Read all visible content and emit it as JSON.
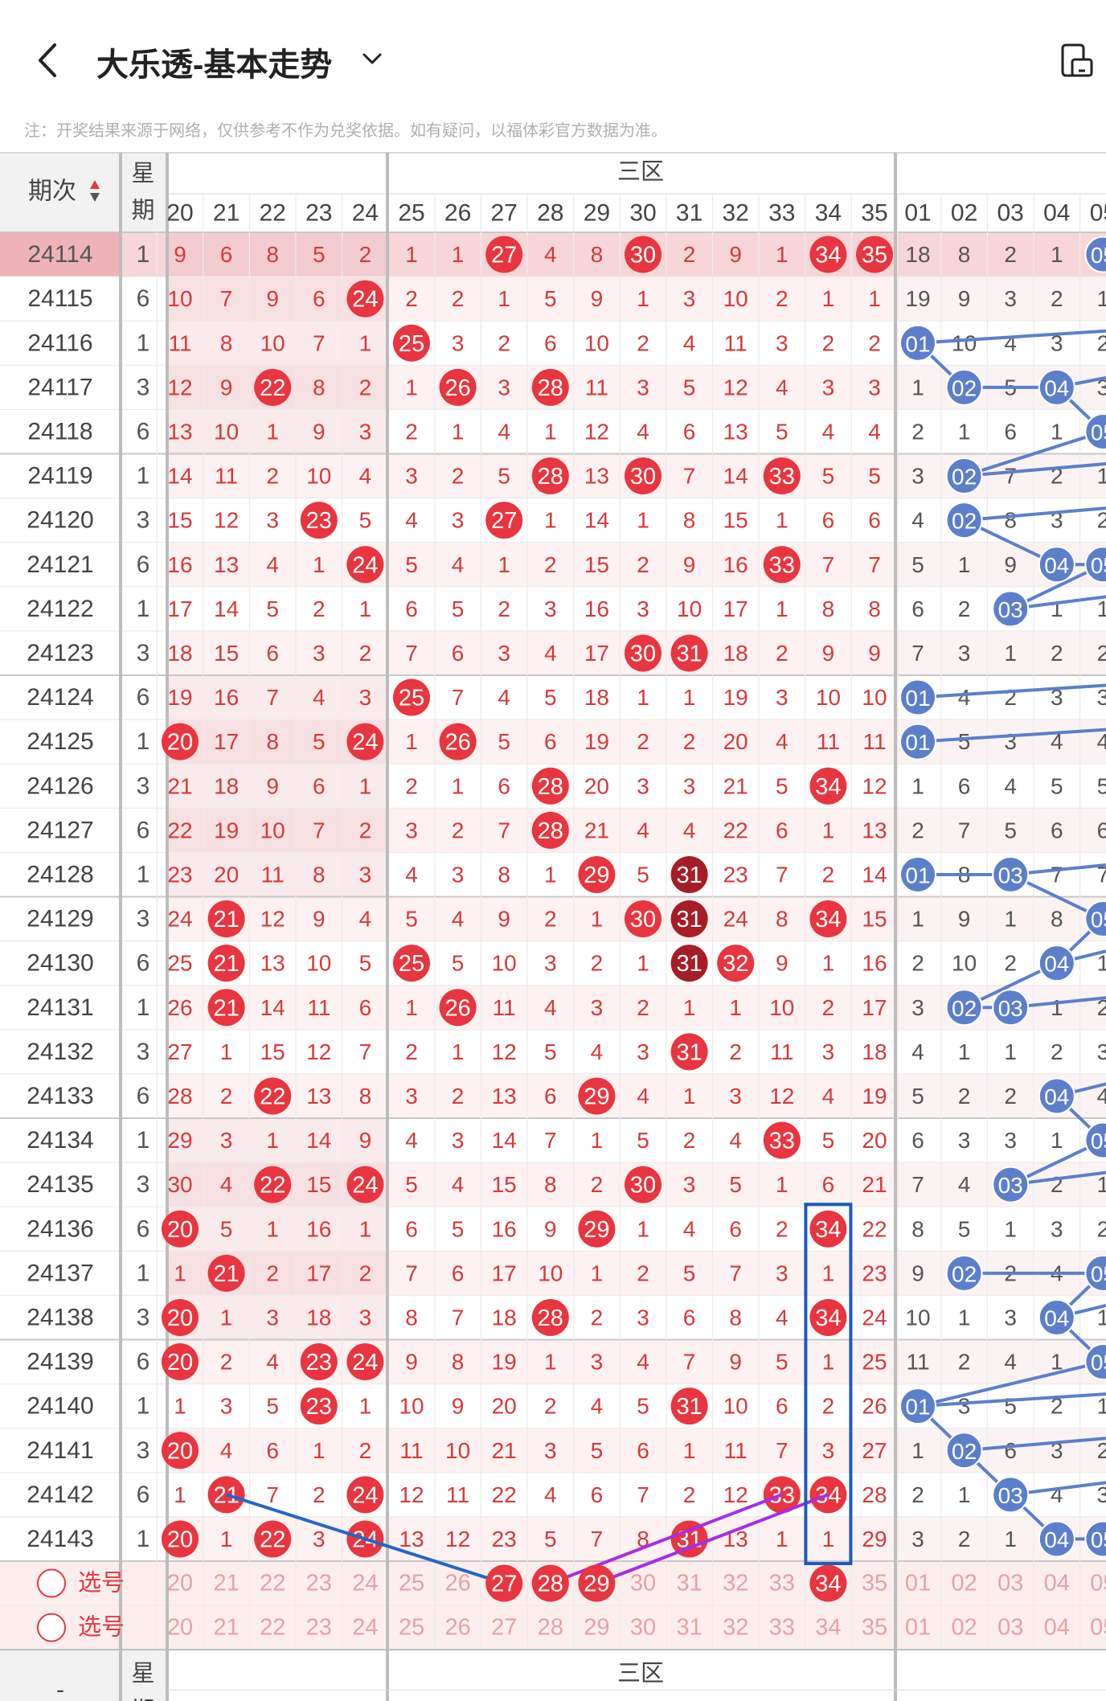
{
  "header": {
    "title": "大乐透-基本走势",
    "back_icon": "chevron-left-icon",
    "dropdown_icon": "chevron-down-icon",
    "device_icon": "device-toggle-icon"
  },
  "notice": "注：开奖结果来源于网络，仅供参考不作为兑奖依据。如有疑问，以福体彩官方数据为准。",
  "table": {
    "col_period": "期次",
    "col_week": [
      "星",
      "期"
    ],
    "zone_label": "三区",
    "front_cols": [
      "20",
      "21",
      "22",
      "23",
      "24",
      "25",
      "26",
      "27",
      "28",
      "29",
      "30",
      "31",
      "32",
      "33",
      "34",
      "35"
    ],
    "back_cols": [
      "01",
      "02",
      "03",
      "04",
      "05"
    ],
    "rows": [
      {
        "p": "24114",
        "w": "1",
        "f": [
          "9",
          "6",
          "8",
          "5",
          "2",
          "1",
          "1",
          "27",
          "4",
          "8",
          "30",
          "2",
          "9",
          "1",
          "34",
          "35"
        ],
        "b": [
          "18",
          "8",
          "2",
          "1",
          "05"
        ]
      },
      {
        "p": "24115",
        "w": "6",
        "f": [
          "10",
          "7",
          "9",
          "6",
          "24",
          "2",
          "2",
          "1",
          "5",
          "9",
          "1",
          "3",
          "10",
          "2",
          "1",
          "1"
        ],
        "b": [
          "19",
          "9",
          "3",
          "2",
          "1"
        ]
      },
      {
        "p": "24116",
        "w": "1",
        "f": [
          "11",
          "8",
          "10",
          "7",
          "1",
          "25",
          "3",
          "2",
          "6",
          "10",
          "2",
          "4",
          "11",
          "3",
          "2",
          "2"
        ],
        "b": [
          "01",
          "10",
          "4",
          "3",
          "2"
        ]
      },
      {
        "p": "24117",
        "w": "3",
        "f": [
          "12",
          "9",
          "22",
          "8",
          "2",
          "1",
          "26",
          "3",
          "28",
          "11",
          "3",
          "5",
          "12",
          "4",
          "3",
          "3"
        ],
        "b": [
          "1",
          "02",
          "5",
          "04",
          "3"
        ]
      },
      {
        "p": "24118",
        "w": "6",
        "f": [
          "13",
          "10",
          "1",
          "9",
          "3",
          "2",
          "1",
          "4",
          "1",
          "12",
          "4",
          "6",
          "13",
          "5",
          "4",
          "4"
        ],
        "b": [
          "2",
          "1",
          "6",
          "1",
          "05"
        ]
      },
      {
        "p": "24119",
        "w": "1",
        "f": [
          "14",
          "11",
          "2",
          "10",
          "4",
          "3",
          "2",
          "5",
          "28",
          "13",
          "30",
          "7",
          "14",
          "33",
          "5",
          "5"
        ],
        "b": [
          "3",
          "02",
          "7",
          "2",
          "1"
        ]
      },
      {
        "p": "24120",
        "w": "3",
        "f": [
          "15",
          "12",
          "3",
          "23",
          "5",
          "4",
          "3",
          "27",
          "1",
          "14",
          "1",
          "8",
          "15",
          "1",
          "6",
          "6"
        ],
        "b": [
          "4",
          "02",
          "8",
          "3",
          "2"
        ]
      },
      {
        "p": "24121",
        "w": "6",
        "f": [
          "16",
          "13",
          "4",
          "1",
          "24",
          "5",
          "4",
          "1",
          "2",
          "15",
          "2",
          "9",
          "16",
          "33",
          "7",
          "7"
        ],
        "b": [
          "5",
          "1",
          "9",
          "04",
          "05"
        ]
      },
      {
        "p": "24122",
        "w": "1",
        "f": [
          "17",
          "14",
          "5",
          "2",
          "1",
          "6",
          "5",
          "2",
          "3",
          "16",
          "3",
          "10",
          "17",
          "1",
          "8",
          "8"
        ],
        "b": [
          "6",
          "2",
          "03",
          "1",
          "1"
        ]
      },
      {
        "p": "24123",
        "w": "3",
        "f": [
          "18",
          "15",
          "6",
          "3",
          "2",
          "7",
          "6",
          "3",
          "4",
          "17",
          "30",
          "31",
          "18",
          "2",
          "9",
          "9"
        ],
        "b": [
          "7",
          "3",
          "1",
          "2",
          "2"
        ]
      },
      {
        "p": "24124",
        "w": "6",
        "f": [
          "19",
          "16",
          "7",
          "4",
          "3",
          "25",
          "7",
          "4",
          "5",
          "18",
          "1",
          "1",
          "19",
          "3",
          "10",
          "10"
        ],
        "b": [
          "01",
          "4",
          "2",
          "3",
          "3"
        ]
      },
      {
        "p": "24125",
        "w": "1",
        "f": [
          "20",
          "17",
          "8",
          "5",
          "24",
          "1",
          "26",
          "5",
          "6",
          "19",
          "2",
          "2",
          "20",
          "4",
          "11",
          "11"
        ],
        "b": [
          "01",
          "5",
          "3",
          "4",
          "4"
        ]
      },
      {
        "p": "24126",
        "w": "3",
        "f": [
          "21",
          "18",
          "9",
          "6",
          "1",
          "2",
          "1",
          "6",
          "28",
          "20",
          "3",
          "3",
          "21",
          "5",
          "34",
          "12"
        ],
        "b": [
          "1",
          "6",
          "4",
          "5",
          "5"
        ]
      },
      {
        "p": "24127",
        "w": "6",
        "f": [
          "22",
          "19",
          "10",
          "7",
          "2",
          "3",
          "2",
          "7",
          "28",
          "21",
          "4",
          "4",
          "22",
          "6",
          "1",
          "13"
        ],
        "b": [
          "2",
          "7",
          "5",
          "6",
          "6"
        ]
      },
      {
        "p": "24128",
        "w": "1",
        "f": [
          "23",
          "20",
          "11",
          "8",
          "3",
          "4",
          "3",
          "8",
          "1",
          "29",
          "5",
          "31",
          "23",
          "7",
          "2",
          "14"
        ],
        "b": [
          "01",
          "8",
          "03",
          "7",
          "7"
        ]
      },
      {
        "p": "24129",
        "w": "3",
        "f": [
          "24",
          "21",
          "12",
          "9",
          "4",
          "5",
          "4",
          "9",
          "2",
          "1",
          "30",
          "31",
          "24",
          "8",
          "34",
          "15"
        ],
        "b": [
          "1",
          "9",
          "1",
          "8",
          "05"
        ]
      },
      {
        "p": "24130",
        "w": "6",
        "f": [
          "25",
          "21",
          "13",
          "10",
          "5",
          "25",
          "5",
          "10",
          "3",
          "2",
          "1",
          "31",
          "32",
          "9",
          "1",
          "16"
        ],
        "b": [
          "2",
          "10",
          "2",
          "04",
          "1"
        ]
      },
      {
        "p": "24131",
        "w": "1",
        "f": [
          "26",
          "21",
          "14",
          "11",
          "6",
          "1",
          "26",
          "11",
          "4",
          "3",
          "2",
          "1",
          "1",
          "10",
          "2",
          "17"
        ],
        "b": [
          "3",
          "02",
          "03",
          "1",
          "2"
        ]
      },
      {
        "p": "24132",
        "w": "3",
        "f": [
          "27",
          "1",
          "15",
          "12",
          "7",
          "2",
          "1",
          "12",
          "5",
          "4",
          "3",
          "31",
          "2",
          "11",
          "3",
          "18"
        ],
        "b": [
          "4",
          "1",
          "1",
          "2",
          "3"
        ]
      },
      {
        "p": "24133",
        "w": "6",
        "f": [
          "28",
          "2",
          "22",
          "13",
          "8",
          "3",
          "2",
          "13",
          "6",
          "29",
          "4",
          "1",
          "3",
          "12",
          "4",
          "19"
        ],
        "b": [
          "5",
          "2",
          "2",
          "04",
          "4"
        ]
      },
      {
        "p": "24134",
        "w": "1",
        "f": [
          "29",
          "3",
          "1",
          "14",
          "9",
          "4",
          "3",
          "14",
          "7",
          "1",
          "5",
          "2",
          "4",
          "33",
          "5",
          "20"
        ],
        "b": [
          "6",
          "3",
          "3",
          "1",
          "05"
        ]
      },
      {
        "p": "24135",
        "w": "3",
        "f": [
          "30",
          "4",
          "22",
          "15",
          "24",
          "5",
          "4",
          "15",
          "8",
          "2",
          "30",
          "3",
          "5",
          "1",
          "6",
          "21"
        ],
        "b": [
          "7",
          "4",
          "03",
          "2",
          "1"
        ]
      },
      {
        "p": "24136",
        "w": "6",
        "f": [
          "20",
          "5",
          "1",
          "16",
          "1",
          "6",
          "5",
          "16",
          "9",
          "29",
          "1",
          "4",
          "6",
          "2",
          "34",
          "22"
        ],
        "b": [
          "8",
          "5",
          "1",
          "3",
          "2"
        ]
      },
      {
        "p": "24137",
        "w": "1",
        "f": [
          "1",
          "21",
          "2",
          "17",
          "2",
          "7",
          "6",
          "17",
          "10",
          "1",
          "2",
          "5",
          "7",
          "3",
          "1",
          "23"
        ],
        "b": [
          "9",
          "02",
          "2",
          "4",
          "05"
        ]
      },
      {
        "p": "24138",
        "w": "3",
        "f": [
          "20",
          "1",
          "3",
          "18",
          "3",
          "8",
          "7",
          "18",
          "28",
          "2",
          "3",
          "6",
          "8",
          "4",
          "34",
          "24"
        ],
        "b": [
          "10",
          "1",
          "3",
          "04",
          "1"
        ]
      },
      {
        "p": "24139",
        "w": "6",
        "f": [
          "20",
          "2",
          "4",
          "23",
          "24",
          "9",
          "8",
          "19",
          "1",
          "3",
          "4",
          "7",
          "9",
          "5",
          "1",
          "25"
        ],
        "b": [
          "11",
          "2",
          "4",
          "1",
          "05"
        ]
      },
      {
        "p": "24140",
        "w": "1",
        "f": [
          "1",
          "3",
          "5",
          "23",
          "1",
          "10",
          "9",
          "20",
          "2",
          "4",
          "5",
          "31",
          "10",
          "6",
          "2",
          "26"
        ],
        "b": [
          "01",
          "3",
          "5",
          "2",
          "1"
        ]
      },
      {
        "p": "24141",
        "w": "3",
        "f": [
          "20",
          "4",
          "6",
          "1",
          "2",
          "11",
          "10",
          "21",
          "3",
          "5",
          "6",
          "1",
          "11",
          "7",
          "3",
          "27"
        ],
        "b": [
          "1",
          "02",
          "6",
          "3",
          "2"
        ]
      },
      {
        "p": "24142",
        "w": "6",
        "f": [
          "1",
          "21",
          "7",
          "2",
          "24",
          "12",
          "11",
          "22",
          "4",
          "6",
          "7",
          "2",
          "12",
          "33",
          "34",
          "28"
        ],
        "b": [
          "2",
          "1",
          "03",
          "4",
          "3"
        ]
      },
      {
        "p": "24143",
        "w": "1",
        "f": [
          "20",
          "1",
          "22",
          "3",
          "24",
          "13",
          "12",
          "23",
          "5",
          "7",
          "8",
          "31",
          "13",
          "1",
          "1",
          "29"
        ],
        "b": [
          "3",
          "2",
          "1",
          "04",
          "05"
        ]
      }
    ],
    "pick_label": "选号"
  },
  "colors": {
    "red": "#e8353f",
    "darkred": "#a71c25",
    "blue": "#5b7fcb",
    "purple": "#a62fe0",
    "line": "#2466c7",
    "sel": "#1d5bb8"
  }
}
